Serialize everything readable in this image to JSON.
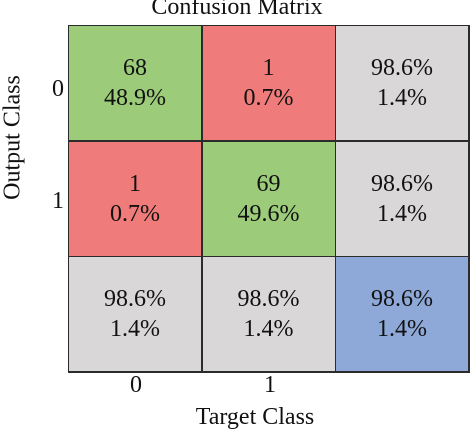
{
  "chart_data": {
    "type": "heatmap",
    "title": "Confusion Matrix",
    "xlabel": "Target Class",
    "ylabel": "Output Class",
    "x_ticks": [
      "0",
      "1"
    ],
    "y_ticks": [
      "0",
      "1"
    ],
    "colors": {
      "correct": "#9ccc7a",
      "incorrect": "#ef7b7b",
      "summary": "#d9d7d8",
      "overall": "#8ea9d8"
    },
    "cells": [
      [
        {
          "line1": "68",
          "line2": "48.9%",
          "kind": "correct"
        },
        {
          "line1": "1",
          "line2": "0.7%",
          "kind": "incorrect"
        },
        {
          "line1": "98.6%",
          "line2": "1.4%",
          "kind": "summary"
        }
      ],
      [
        {
          "line1": "1",
          "line2": "0.7%",
          "kind": "incorrect"
        },
        {
          "line1": "69",
          "line2": "49.6%",
          "kind": "correct"
        },
        {
          "line1": "98.6%",
          "line2": "1.4%",
          "kind": "summary"
        }
      ],
      [
        {
          "line1": "98.6%",
          "line2": "1.4%",
          "kind": "summary"
        },
        {
          "line1": "98.6%",
          "line2": "1.4%",
          "kind": "summary"
        },
        {
          "line1": "98.6%",
          "line2": "1.4%",
          "kind": "overall"
        }
      ]
    ]
  }
}
